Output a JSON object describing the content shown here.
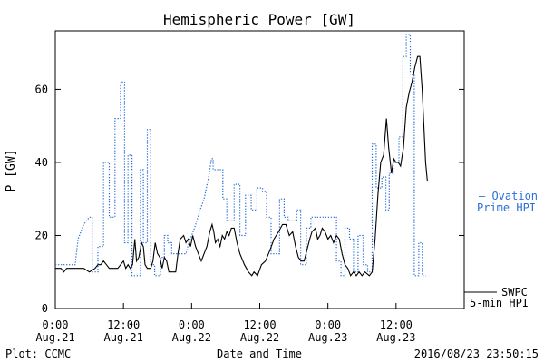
{
  "chart_data": {
    "type": "line",
    "title": "Hemispheric Power [GW]",
    "xlabel": "Date and Time",
    "ylabel": "P [GW]",
    "x_unit": "hours since Aug.21 0:00",
    "xlim": [
      0,
      72
    ],
    "ylim": [
      0,
      76
    ],
    "y_ticks": [
      0,
      20,
      40,
      60
    ],
    "x_ticks": [
      {
        "x": 0,
        "line1": "0:00",
        "line2": "Aug.21"
      },
      {
        "x": 12,
        "line1": "12:00",
        "line2": "Aug.21"
      },
      {
        "x": 24,
        "line1": "0:00",
        "line2": "Aug.22"
      },
      {
        "x": 36,
        "line1": "12:00",
        "line2": "Aug.22"
      },
      {
        "x": 48,
        "line1": "0:00",
        "line2": "Aug.23"
      },
      {
        "x": 60,
        "line1": "12:00",
        "line2": "Aug.23"
      }
    ],
    "footer_left": "Plot: CCMC",
    "footer_right": "2016/08/23 23:50:15",
    "series": [
      {
        "name_lines": [
          "SWPC",
          "5-min HPI"
        ],
        "color": "#000000",
        "style": "solid",
        "points": [
          [
            0,
            11
          ],
          [
            1,
            11
          ],
          [
            1.5,
            10
          ],
          [
            2,
            11
          ],
          [
            4,
            11
          ],
          [
            5,
            11
          ],
          [
            6,
            10
          ],
          [
            7,
            11
          ],
          [
            7.5,
            12
          ],
          [
            8,
            12
          ],
          [
            8.5,
            13
          ],
          [
            9,
            12
          ],
          [
            9.5,
            11
          ],
          [
            10,
            11
          ],
          [
            11,
            11
          ],
          [
            11.5,
            12
          ],
          [
            12,
            13
          ],
          [
            12.4,
            11
          ],
          [
            12.8,
            12
          ],
          [
            13.2,
            11
          ],
          [
            13.6,
            12
          ],
          [
            14,
            19
          ],
          [
            14.3,
            13
          ],
          [
            14.7,
            14
          ],
          [
            15.2,
            18
          ],
          [
            15.5,
            17
          ],
          [
            15.8,
            12
          ],
          [
            16.2,
            11
          ],
          [
            16.8,
            11
          ],
          [
            17.2,
            13
          ],
          [
            17.6,
            18
          ],
          [
            18,
            15
          ],
          [
            18.4,
            14
          ],
          [
            18.8,
            11
          ],
          [
            19.2,
            14
          ],
          [
            19.6,
            13
          ],
          [
            20,
            10
          ],
          [
            21.2,
            10
          ],
          [
            21.6,
            15
          ],
          [
            22,
            19
          ],
          [
            22.6,
            20
          ],
          [
            23,
            18
          ],
          [
            23.4,
            19
          ],
          [
            23.8,
            17
          ],
          [
            24.2,
            20
          ],
          [
            24.7,
            17
          ],
          [
            25.2,
            15
          ],
          [
            25.7,
            13
          ],
          [
            26.2,
            15
          ],
          [
            26.7,
            17
          ],
          [
            27.2,
            21
          ],
          [
            27.6,
            23
          ],
          [
            27.9,
            21
          ],
          [
            28.2,
            18
          ],
          [
            28.6,
            19
          ],
          [
            29,
            17
          ],
          [
            29.4,
            20
          ],
          [
            29.8,
            19
          ],
          [
            30.2,
            21
          ],
          [
            30.6,
            20
          ],
          [
            31,
            22
          ],
          [
            31.5,
            22
          ],
          [
            32,
            18
          ],
          [
            32.5,
            15
          ],
          [
            33.3,
            12
          ],
          [
            34,
            10
          ],
          [
            34.6,
            9
          ],
          [
            35,
            10
          ],
          [
            35.6,
            9
          ],
          [
            36.3,
            12
          ],
          [
            37,
            13
          ],
          [
            37.8,
            16
          ],
          [
            38.5,
            19
          ],
          [
            39.3,
            21
          ],
          [
            40,
            23
          ],
          [
            40.6,
            23
          ],
          [
            41.2,
            20
          ],
          [
            41.8,
            21
          ],
          [
            42.3,
            17
          ],
          [
            42.8,
            14
          ],
          [
            43.3,
            13
          ],
          [
            43.8,
            13
          ],
          [
            44.3,
            16
          ],
          [
            44.8,
            19
          ],
          [
            45.2,
            21
          ],
          [
            45.8,
            22
          ],
          [
            46.2,
            19
          ],
          [
            46.6,
            20
          ],
          [
            47,
            22
          ],
          [
            47.5,
            21
          ],
          [
            48,
            19
          ],
          [
            48.5,
            20
          ],
          [
            49,
            18
          ],
          [
            49.5,
            20
          ],
          [
            50,
            19
          ],
          [
            50.5,
            15
          ],
          [
            51,
            12
          ],
          [
            51.5,
            11
          ],
          [
            52,
            9
          ],
          [
            52.5,
            10
          ],
          [
            53,
            9
          ],
          [
            53.5,
            10
          ],
          [
            54,
            9
          ],
          [
            54.5,
            10
          ],
          [
            55.3,
            9
          ],
          [
            55.8,
            10
          ],
          [
            56.3,
            19
          ],
          [
            56.8,
            31
          ],
          [
            57.3,
            40
          ],
          [
            57.8,
            42
          ],
          [
            58.3,
            52
          ],
          [
            58.7,
            44
          ],
          [
            59.2,
            37
          ],
          [
            59.6,
            41
          ],
          [
            60,
            40
          ],
          [
            60.4,
            40
          ],
          [
            60.8,
            39
          ],
          [
            61.3,
            44
          ],
          [
            61.8,
            55
          ],
          [
            62.3,
            59
          ],
          [
            62.8,
            62
          ],
          [
            63.3,
            66
          ],
          [
            63.8,
            69
          ],
          [
            64.2,
            69
          ],
          [
            64.6,
            60
          ],
          [
            65.2,
            40
          ],
          [
            65.5,
            35
          ]
        ]
      },
      {
        "name_lines": [
          "— Ovation",
          "Prime HPI"
        ],
        "color": "#2b6fd6",
        "style": "dotted",
        "points": [
          [
            0,
            12
          ],
          [
            1,
            12
          ],
          [
            2,
            12
          ],
          [
            3.5,
            12
          ],
          [
            4,
            19
          ],
          [
            4.5,
            21
          ],
          [
            5,
            23
          ],
          [
            5.5,
            24
          ],
          [
            6,
            25
          ],
          [
            6.5,
            25
          ],
          [
            6.5,
            10
          ],
          [
            7.5,
            10
          ],
          [
            7.5,
            17
          ],
          [
            8.5,
            17
          ],
          [
            8.5,
            40
          ],
          [
            9.5,
            40
          ],
          [
            9.5,
            25
          ],
          [
            10.5,
            25
          ],
          [
            10.5,
            52
          ],
          [
            11.5,
            52
          ],
          [
            11.5,
            62
          ],
          [
            12.2,
            62
          ],
          [
            12.2,
            18
          ],
          [
            12.8,
            18
          ],
          [
            12.8,
            42
          ],
          [
            13.5,
            42
          ],
          [
            13.5,
            9
          ],
          [
            15,
            9
          ],
          [
            15,
            38
          ],
          [
            15.5,
            38
          ],
          [
            15.5,
            18
          ],
          [
            16.2,
            18
          ],
          [
            16.2,
            49
          ],
          [
            16.8,
            49
          ],
          [
            16.8,
            12
          ],
          [
            17.5,
            12
          ],
          [
            17.5,
            9
          ],
          [
            18.5,
            9
          ],
          [
            18.5,
            14
          ],
          [
            19.2,
            14
          ],
          [
            19.2,
            20
          ],
          [
            19.8,
            20
          ],
          [
            19.8,
            18
          ],
          [
            20.5,
            18
          ],
          [
            20.5,
            15
          ],
          [
            23,
            15
          ],
          [
            23.5,
            18
          ],
          [
            24.5,
            22
          ],
          [
            25.5,
            27
          ],
          [
            26.2,
            30
          ],
          [
            27,
            36
          ],
          [
            27.5,
            41
          ],
          [
            27.8,
            41
          ],
          [
            27.8,
            38
          ],
          [
            29.5,
            38
          ],
          [
            29.5,
            30
          ],
          [
            30.2,
            30
          ],
          [
            30.2,
            24
          ],
          [
            31.5,
            24
          ],
          [
            31.5,
            34
          ],
          [
            32.5,
            34
          ],
          [
            32.5,
            20
          ],
          [
            33.5,
            20
          ],
          [
            33.5,
            31
          ],
          [
            34.5,
            31
          ],
          [
            34.5,
            27
          ],
          [
            35.5,
            27
          ],
          [
            35.5,
            33
          ],
          [
            36.5,
            33
          ],
          [
            36.5,
            32
          ],
          [
            37.2,
            32
          ],
          [
            37.2,
            25
          ],
          [
            38,
            25
          ],
          [
            38,
            15
          ],
          [
            39.5,
            15
          ],
          [
            39.5,
            30
          ],
          [
            40.3,
            30
          ],
          [
            40.3,
            25
          ],
          [
            41,
            25
          ],
          [
            41,
            24
          ],
          [
            42.5,
            24
          ],
          [
            42.5,
            27
          ],
          [
            43.2,
            27
          ],
          [
            43.2,
            12
          ],
          [
            44.2,
            12
          ],
          [
            44.2,
            22
          ],
          [
            45,
            22
          ],
          [
            45,
            25
          ],
          [
            49.5,
            25
          ],
          [
            49.5,
            13
          ],
          [
            50.3,
            13
          ],
          [
            50.3,
            9
          ],
          [
            51,
            9
          ],
          [
            51,
            22
          ],
          [
            51.8,
            22
          ],
          [
            51.8,
            19
          ],
          [
            52.5,
            19
          ],
          [
            52.5,
            10
          ],
          [
            53.3,
            10
          ],
          [
            53.3,
            20
          ],
          [
            54.2,
            20
          ],
          [
            54.2,
            12
          ],
          [
            55,
            12
          ],
          [
            55,
            10
          ],
          [
            55.8,
            10
          ],
          [
            55.8,
            45
          ],
          [
            56.5,
            45
          ],
          [
            56.5,
            33
          ],
          [
            57.5,
            33
          ],
          [
            57.5,
            36
          ],
          [
            58.2,
            36
          ],
          [
            58.2,
            27
          ],
          [
            58.8,
            27
          ],
          [
            58.8,
            37
          ],
          [
            59.5,
            37
          ],
          [
            59.5,
            40
          ],
          [
            60.5,
            40
          ],
          [
            60.5,
            47
          ],
          [
            61.2,
            47
          ],
          [
            61.2,
            69
          ],
          [
            61.8,
            69
          ],
          [
            61.8,
            75
          ],
          [
            62.5,
            75
          ],
          [
            62.5,
            64
          ],
          [
            63.2,
            64
          ],
          [
            63.2,
            9
          ],
          [
            64,
            9
          ],
          [
            64,
            18
          ],
          [
            64.6,
            18
          ],
          [
            64.6,
            9
          ],
          [
            65.2,
            9
          ]
        ]
      }
    ]
  }
}
